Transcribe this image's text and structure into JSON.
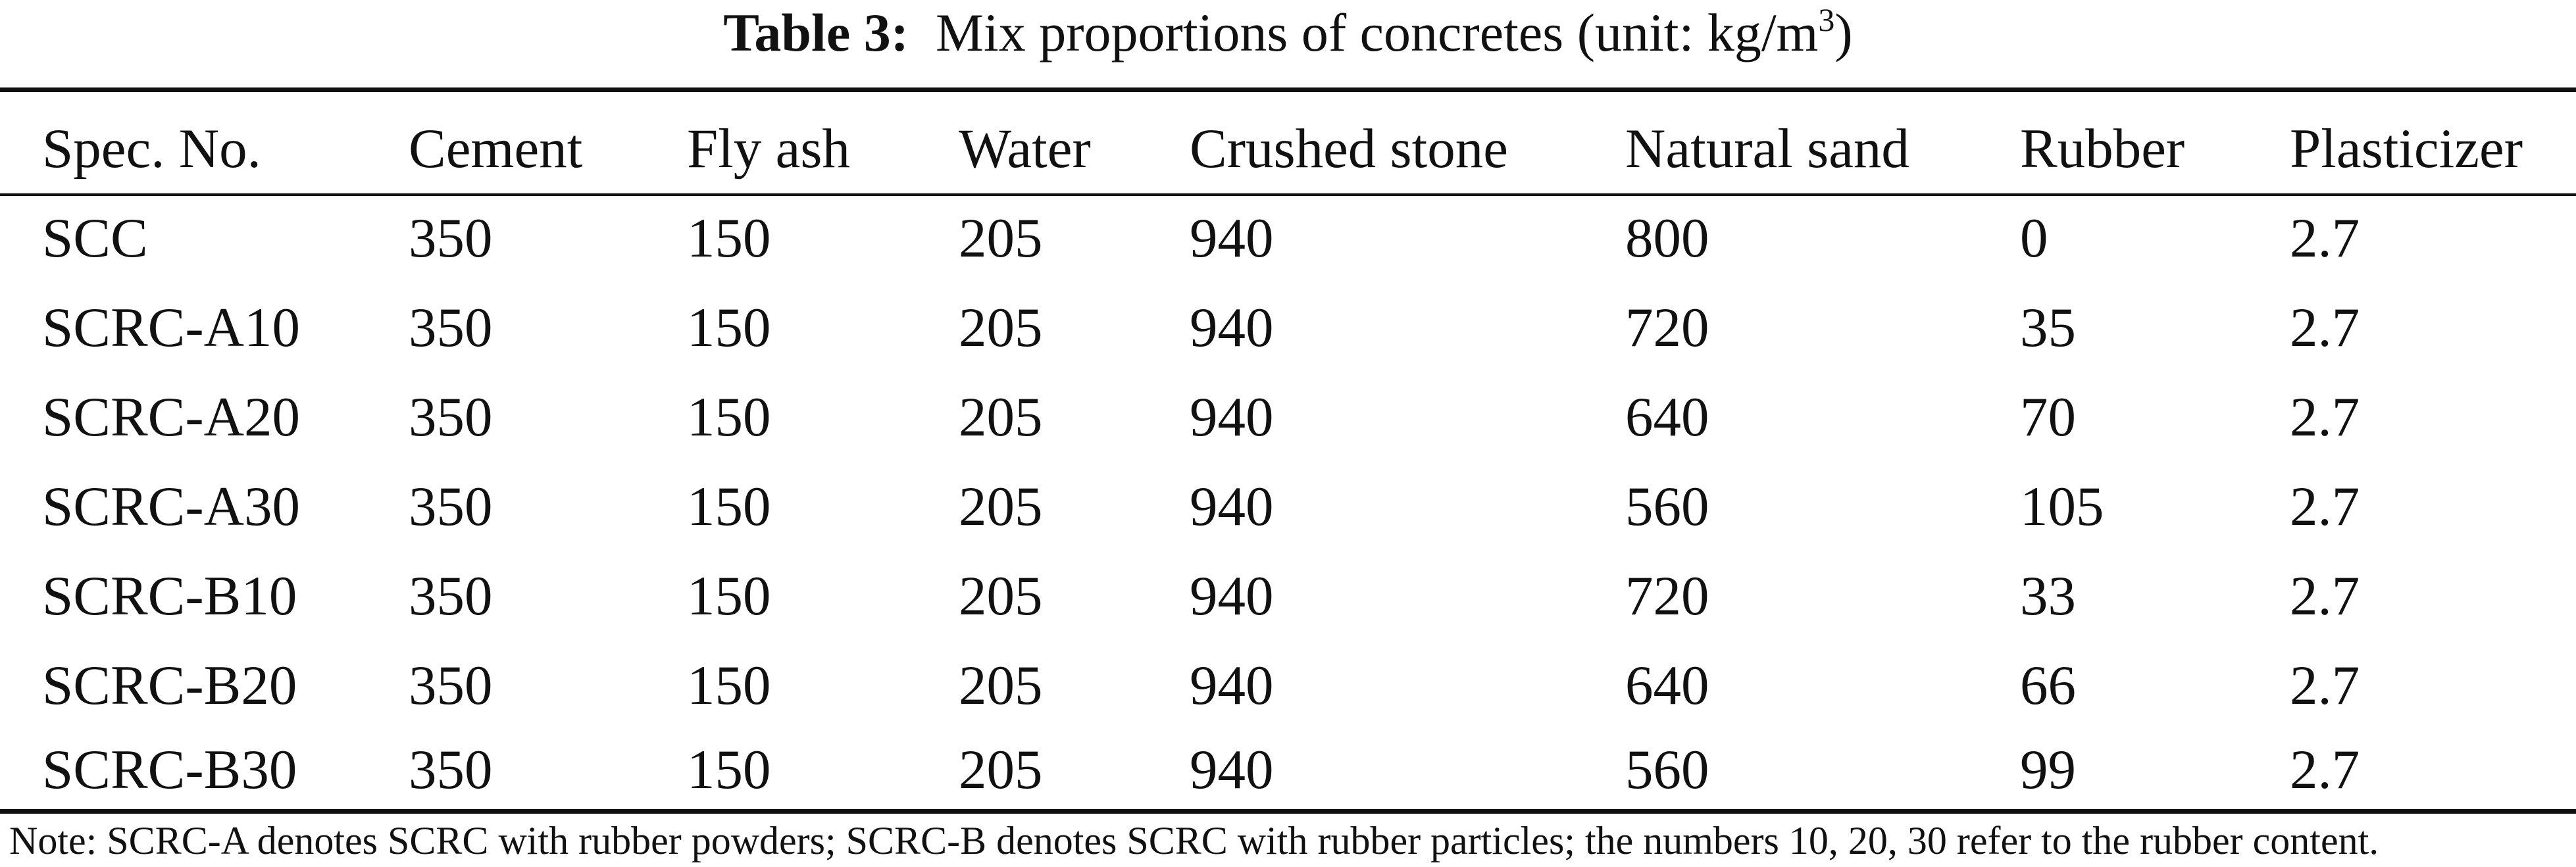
{
  "caption": {
    "label": "Table 3:",
    "text": "Mix proportions of concretes (unit: kg/m",
    "sup": "3",
    "close": ")"
  },
  "table": {
    "headers": [
      "Spec. No.",
      "Cement",
      "Fly ash",
      "Water",
      "Crushed stone",
      "Natural sand",
      "Rubber",
      "Plasticizer"
    ],
    "rows": [
      [
        "SCC",
        "350",
        "150",
        "205",
        "940",
        "800",
        "0",
        "2.7"
      ],
      [
        "SCRC-A10",
        "350",
        "150",
        "205",
        "940",
        "720",
        "35",
        "2.7"
      ],
      [
        "SCRC-A20",
        "350",
        "150",
        "205",
        "940",
        "640",
        "70",
        "2.7"
      ],
      [
        "SCRC-A30",
        "350",
        "150",
        "205",
        "940",
        "560",
        "105",
        "2.7"
      ],
      [
        "SCRC-B10",
        "350",
        "150",
        "205",
        "940",
        "720",
        "33",
        "2.7"
      ],
      [
        "SCRC-B20",
        "350",
        "150",
        "205",
        "940",
        "640",
        "66",
        "2.7"
      ],
      [
        "SCRC-B30",
        "350",
        "150",
        "205",
        "940",
        "560",
        "99",
        "2.7"
      ]
    ]
  },
  "note": "Note: SCRC-A denotes SCRC with rubber powders; SCRC-B denotes SCRC with rubber particles; the numbers 10, 20, 30 refer to the rubber content."
}
